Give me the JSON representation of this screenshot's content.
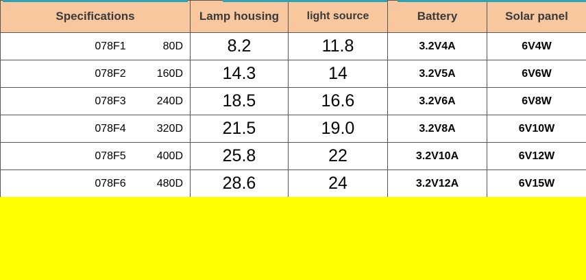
{
  "table": {
    "headers": [
      "Specifications",
      "Lamp housing",
      "light source",
      "Battery",
      "Solar panel"
    ],
    "rows": [
      {
        "model": "078F1",
        "power": "80D",
        "lamp_housing": "8.2",
        "light_source": "11.8",
        "battery": "3.2V4A",
        "solar_panel": "6V4W"
      },
      {
        "model": "078F2",
        "power": "160D",
        "lamp_housing": "14.3",
        "light_source": "14",
        "battery": "3.2V5A",
        "solar_panel": "6V6W"
      },
      {
        "model": "078F3",
        "power": "240D",
        "lamp_housing": "18.5",
        "light_source": "16.6",
        "battery": "3.2V6A",
        "solar_panel": "6V8W"
      },
      {
        "model": "078F4",
        "power": "320D",
        "lamp_housing": "21.5",
        "light_source": "19.0",
        "battery": "3.2V8A",
        "solar_panel": "6V10W"
      },
      {
        "model": "078F5",
        "power": "400D",
        "lamp_housing": "25.8",
        "light_source": "22",
        "battery": "3.2V10A",
        "solar_panel": "6V12W"
      },
      {
        "model": "078F6",
        "power": "480D",
        "lamp_housing": "28.6",
        "light_source": "24",
        "battery": "3.2V12A",
        "solar_panel": "6V15W"
      }
    ]
  },
  "colors": {
    "header_bg": "#f8c79d",
    "accent_bar": "#2aa3b3",
    "bottom_fill": "#ffff00"
  }
}
